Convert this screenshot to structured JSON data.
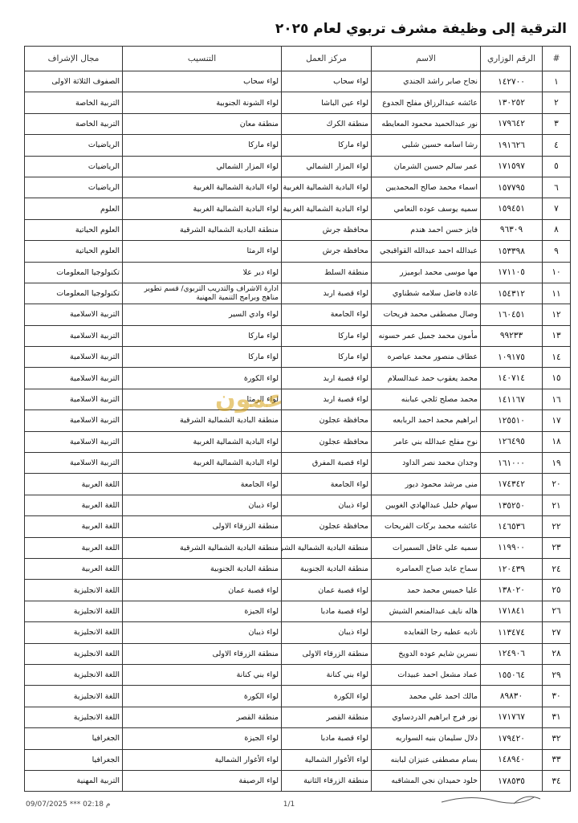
{
  "header": {
    "title": "الترقية إلى وظيفة مشرف تربوي لعام ٢٠٢٥"
  },
  "table": {
    "headers": [
      "#",
      "الرقم الوزاري",
      "الاسم",
      "مركز العمل",
      "التنسيب",
      "مجال الإشراف"
    ],
    "rows": [
      [
        "١",
        "١٤٢٧٠٠",
        "نجاح صابر راشد الجندي",
        "لواء سحاب",
        "لواء سحاب",
        "الصفوف الثلاثة الاولى"
      ],
      [
        "٢",
        "١٣٠٢٥٢",
        "عائشه عبدالرزاق مفلح الجدوع",
        "لواء عين الباشا",
        "لواء الشونة الجنوبية",
        "التربية الخاصة"
      ],
      [
        "٣",
        "١٧٩٦٤٢",
        "نور عبدالحميد محمود المعايطه",
        "منطقة الكرك",
        "منطقة معان",
        "التربية الخاصة"
      ],
      [
        "٤",
        "١٩١٦٢٦",
        "رشا اسامه حسين شلبي",
        "لواء ماركا",
        "لواء ماركا",
        "الرياضيات"
      ],
      [
        "٥",
        "١٧١٥٩٧",
        "عمر سالم حسين الشرمان",
        "لواء المزار الشمالي",
        "لواء المزار الشمالي",
        "الرياضيات"
      ],
      [
        "٦",
        "١٥٧٧٩٥",
        "اسماء محمد صالح المحمديين",
        "لواء البادية الشمالية الغربية",
        "لواء البادية الشمالية الغربية",
        "الرياضيات"
      ],
      [
        "٧",
        "١٥٩٤٥١",
        "سميه يوسف عوده النعامي",
        "لواء البادية الشمالية الغربية",
        "لواء البادية الشمالية الغربية",
        "العلوم"
      ],
      [
        "٨",
        "٩٦٣٠٩",
        "فايز حسن احمد هندم",
        "محافظة جرش",
        "منطقة البادية الشمالية الشرقية",
        "العلوم الحياتية"
      ],
      [
        "٩",
        "١٥٣٣٩٨",
        "عبدالله احمد عبدالله القواقبجي",
        "محافظة جرش",
        "لواء الرمثا",
        "العلوم الحياتية"
      ],
      [
        "١٠",
        "١٧١١٠٥",
        "مها موسى محمد ابوميزر",
        "منطقة السلط",
        "لواء دير علا",
        "تكنولوجيا المعلومات"
      ],
      [
        "١١",
        "١٥٤٣١٢",
        "غاده فاضل سلامه شطناوي",
        "لواء قصبة اربد",
        "ادارة الاشراف والتدريب التربوي/ قسم تطوير مناهج وبرامج التنمية المهنية",
        "تكنولوجيا المعلومات"
      ],
      [
        "١٢",
        "١٦٠٤٥١",
        "وصال مصطفى محمد فريحات",
        "لواء الجامعة",
        "لواء وادي السير",
        "التربية الاسلامية"
      ],
      [
        "١٣",
        "٩٩٢٣٣",
        "مأمون محمد جميل عمر حسونه",
        "لواء ماركا",
        "لواء ماركا",
        "التربية الاسلامية"
      ],
      [
        "١٤",
        "١٠٩١٧٥",
        "عطاف منصور محمد عياصره",
        "لواء ماركا",
        "لواء ماركا",
        "التربية الاسلامية"
      ],
      [
        "١٥",
        "١٤٠٧١٤",
        "محمد يعقوب حمد عبدالسلام",
        "لواء قصبة اربد",
        "لواء الكورة",
        "التربية الاسلامية"
      ],
      [
        "١٦",
        "١٤١١٦٧",
        "محمد مصلح ثلجي عبابنه",
        "لواء قصبة اربد",
        "لواء الرمثا",
        "التربية الاسلامية"
      ],
      [
        "١٧",
        "١٢٥٥١٠",
        "ابراهيم محمد احمد الربابعه",
        "محافظة عجلون",
        "منطقة البادية الشمالية الشرقية",
        "التربية الاسلامية"
      ],
      [
        "١٨",
        "١٢٦٤٩٥",
        "نوح مفلح عبدالله بني عامر",
        "محافظة عجلون",
        "لواء البادية الشمالية الغربية",
        "التربية الاسلامية"
      ],
      [
        "١٩",
        "١٦١٠٠٠",
        "وجدان محمد نصر الداود",
        "لواء قصبة المفرق",
        "لواء البادية الشمالية الغربية",
        "التربية الاسلامية"
      ],
      [
        "٢٠",
        "١٧٤٣٤٢",
        "منى مرشد محمود ديور",
        "لواء الجامعة",
        "لواء الجامعة",
        "اللغة العربية"
      ],
      [
        "٢١",
        "١٣٥٢٥٠",
        "سهام خليل عبدالهادي الغويين",
        "لواء ذيبان",
        "لواء ذيبان",
        "اللغة العربية"
      ],
      [
        "٢٢",
        "١٤٦٥٣٦",
        "عائشه محمد بركات الفريحات",
        "محافظة عجلون",
        "منطقة الزرقاء الاولى",
        "اللغة العربية"
      ],
      [
        "٢٣",
        "١١٩٩٠٠",
        "سميه علي غافل السميرات",
        "منطقة البادية الشمالية الشرقية",
        "منطقة البادية الشمالية الشرقية",
        "اللغة العربية"
      ],
      [
        "٢٤",
        "١٢٠٤٣٩",
        "سماح عايد صباح العمامره",
        "منطقة البادية الجنوبية",
        "منطقة البادية الجنوبية",
        "اللغة العربية"
      ],
      [
        "٢٥",
        "١٣٨٠٢٠",
        "عليا خميس محمد حمد",
        "لواء قصبة عمان",
        "لواء قصبة عمان",
        "اللغة الانجليزية"
      ],
      [
        "٢٦",
        "١٧١٨٤١",
        "هاله نايف عبدالمنعم الشيش",
        "لواء قصبة مادبا",
        "لواء الجيزة",
        "اللغة الانجليزية"
      ],
      [
        "٢٧",
        "١١٣٤٧٤",
        "ناديه عطيه رجا القعايده",
        "لواء ذيبان",
        "لواء ذيبان",
        "اللغة الانجليزية"
      ],
      [
        "٢٨",
        "١٢٤٩٠٦",
        "نسرين شايم عوده الدويخ",
        "منطقة الزرقاء الاولى",
        "منطقة الزرقاء الاولى",
        "اللغة الانجليزية"
      ],
      [
        "٢٩",
        "١٥٥٠٦٤",
        "عماد مشعل احمد عبيدات",
        "لواء بني كنانة",
        "لواء بني كنانة",
        "اللغة الانجليزية"
      ],
      [
        "٣٠",
        "٨٩٨٣٠",
        "مالك احمد علي محمد",
        "لواء الكورة",
        "لواء الكورة",
        "اللغة الانجليزية"
      ],
      [
        "٣١",
        "١٧١٧٦٧",
        "نور فرج ابراهيم الدردساوي",
        "منطقة القصر",
        "منطقة القصر",
        "اللغة الانجليزية"
      ],
      [
        "٣٢",
        "١٧٩٤٢٠",
        "دلال سليمان بنيه السواريه",
        "لواء قصبة مادبا",
        "لواء الجيزة",
        "الجغرافيا"
      ],
      [
        "٣٣",
        "١٤٨٩٤٠",
        "بسام مصطفى عنيزان لبابنه",
        "لواء الأغوار الشمالية",
        "لواء الأغوار الشمالية",
        "الجغرافيا"
      ],
      [
        "٣٤",
        "١٧٨٥٣٥",
        "خلود حميدان نجي المشاقبه",
        "منطقة الزرقاء الثانية",
        "لواء الرصيفة",
        "التربية المهنية"
      ]
    ]
  },
  "watermark": "عمون",
  "footer": {
    "page": "1/1",
    "timestamp": "09/07/2025 *** 02:18 م"
  }
}
